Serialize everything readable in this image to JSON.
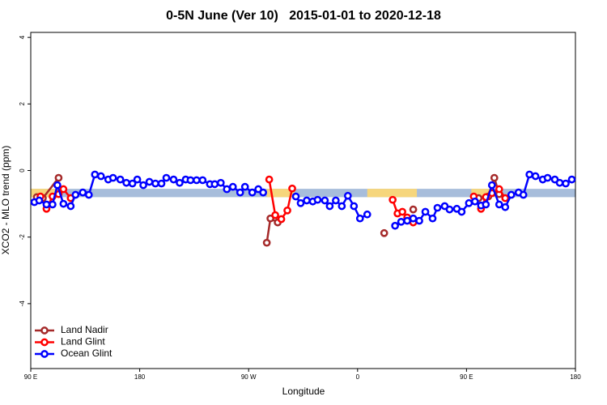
{
  "chart_data": {
    "type": "line",
    "title": "0-5N June (Ver 10)   2015-01-01 to 2020-12-18",
    "x_label": "Longitude",
    "y_label": "XCO2 - MLO trend (ppm)",
    "xlim": [
      90,
      540
    ],
    "ylim": [
      -5.95,
      4.15
    ],
    "xticks": [
      {
        "value": 90,
        "label": "90 E"
      },
      180,
      {
        "value": 270,
        "label": "90 W"
      },
      {
        "value": 360,
        "label": "0"
      },
      {
        "value": 450,
        "label": "90 E"
      },
      {
        "value": 540,
        "label": "180"
      }
    ],
    "yticks": [
      4,
      2,
      0,
      -2,
      -4
    ],
    "grid": false,
    "legend": "bottom-left",
    "background_band": {
      "range": [
        -0.8,
        -0.55
      ],
      "color": "#a7bddb"
    },
    "land_spans": {
      "color": "#f6d67c",
      "ranges": [
        [
          90,
          115
        ],
        [
          285,
          308
        ],
        [
          368,
          409
        ],
        [
          454,
          469
        ]
      ]
    },
    "series": [
      {
        "name": "Land Nadir",
        "color": "#a52a2a",
        "x": [
          95,
          100,
          113,
          null,
          285,
          288,
          294,
          null,
          382,
          null,
          406,
          null,
          460,
          468,
          473,
          477
        ],
        "values": [
          -0.8,
          -0.83,
          -0.22,
          null,
          -2.17,
          -1.44,
          -1.56,
          null,
          -1.88,
          null,
          -1.17,
          null,
          -0.83,
          -0.78,
          -0.22,
          -0.71
        ]
      },
      {
        "name": "Land Glint",
        "color": "#ff0000",
        "x": [
          98,
          103,
          108,
          113,
          117,
          123,
          null,
          287,
          292,
          297,
          302,
          306,
          null,
          389,
          393,
          397,
          401,
          406,
          null,
          456,
          462,
          466,
          471,
          477,
          482
        ],
        "values": [
          -0.78,
          -1.15,
          -0.78,
          -0.71,
          -0.56,
          -0.83,
          null,
          -0.27,
          -1.34,
          -1.46,
          -1.2,
          -0.54,
          null,
          -0.88,
          -1.29,
          -1.24,
          -1.41,
          -1.56,
          null,
          -0.78,
          -1.15,
          -0.8,
          -0.68,
          -0.56,
          -0.83
        ]
      },
      {
        "name": "Ocean Glint",
        "color": "#0000ff",
        "x": [
          93,
          97,
          103,
          108,
          112,
          117,
          123,
          127,
          133,
          138,
          143,
          148,
          154,
          158,
          164,
          169,
          174,
          178,
          183,
          188,
          193,
          198,
          202,
          208,
          213,
          218,
          222,
          227,
          232,
          238,
          242,
          247,
          252,
          257,
          263,
          267,
          273,
          278,
          282,
          null,
          309,
          313,
          318,
          323,
          327,
          333,
          337,
          342,
          347,
          352,
          357,
          362,
          368,
          null,
          391,
          396,
          401,
          406,
          411,
          416,
          422,
          426,
          432,
          436,
          442,
          446,
          452,
          457,
          462,
          466,
          471,
          477,
          482,
          487,
          493,
          497,
          502,
          507,
          513,
          517,
          523,
          527,
          532,
          537
        ],
        "values": [
          -0.95,
          -0.9,
          -1.02,
          -1.02,
          -0.44,
          -1.0,
          -1.07,
          -0.73,
          -0.66,
          -0.73,
          -0.12,
          -0.17,
          -0.27,
          -0.22,
          -0.27,
          -0.37,
          -0.39,
          -0.27,
          -0.44,
          -0.34,
          -0.39,
          -0.39,
          -0.22,
          -0.27,
          -0.37,
          -0.27,
          -0.29,
          -0.29,
          -0.29,
          -0.41,
          -0.41,
          -0.37,
          -0.56,
          -0.49,
          -0.66,
          -0.49,
          -0.66,
          -0.56,
          -0.66,
          null,
          -0.78,
          -0.98,
          -0.9,
          -0.93,
          -0.88,
          -0.9,
          -1.07,
          -0.9,
          -1.07,
          -0.76,
          -1.07,
          -1.44,
          -1.32,
          null,
          -1.66,
          -1.54,
          -1.51,
          -1.44,
          -1.51,
          -1.24,
          -1.44,
          -1.12,
          -1.07,
          -1.17,
          -1.15,
          -1.24,
          -0.98,
          -0.93,
          -1.05,
          -1.02,
          -0.44,
          -1.02,
          -1.1,
          -0.73,
          -0.66,
          -0.73,
          -0.12,
          -0.17,
          -0.27,
          -0.22,
          -0.27,
          -0.37,
          -0.39,
          -0.27
        ]
      }
    ]
  }
}
